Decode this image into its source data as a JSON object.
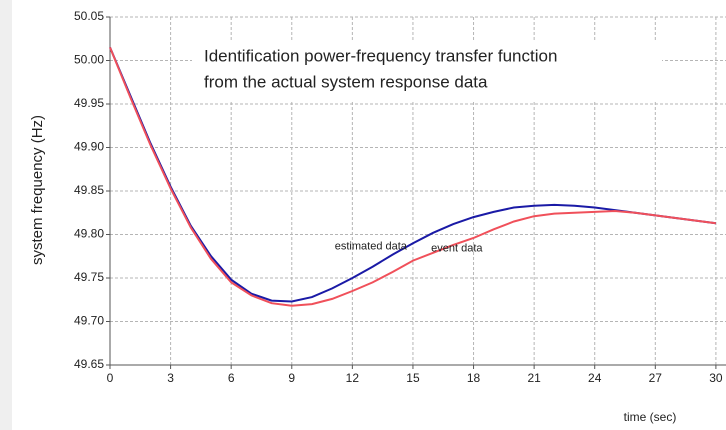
{
  "chart_data": {
    "type": "line",
    "title_lines": [
      "Identification power-frequency transfer function",
      "from the actual system response data"
    ],
    "xlabel": "time (sec)",
    "ylabel": "system frequency (Hz)",
    "x": [
      0,
      1,
      2,
      3,
      4,
      5,
      6,
      7,
      8,
      9,
      10,
      11,
      12,
      13,
      14,
      15,
      16,
      17,
      18,
      19,
      20,
      21,
      22,
      23,
      24,
      25,
      26,
      27,
      28,
      29,
      30
    ],
    "series": [
      {
        "name": "estimated data",
        "color": "#1a1aa6",
        "label_at": 14,
        "values": [
          50.015,
          49.96,
          49.905,
          49.855,
          49.81,
          49.775,
          49.748,
          49.732,
          49.724,
          49.723,
          49.728,
          49.738,
          49.75,
          49.763,
          49.777,
          49.79,
          49.802,
          49.812,
          49.82,
          49.826,
          49.831,
          49.833,
          49.834,
          49.833,
          49.831,
          49.828,
          49.825,
          49.822,
          49.819,
          49.816,
          49.813
        ]
      },
      {
        "name": "event data",
        "color": "#f0505a",
        "label_at": 16,
        "values": [
          50.015,
          49.958,
          49.903,
          49.853,
          49.808,
          49.772,
          49.745,
          49.73,
          49.721,
          49.718,
          49.72,
          49.726,
          49.735,
          49.745,
          49.757,
          49.77,
          49.779,
          49.788,
          49.796,
          49.806,
          49.815,
          49.821,
          49.824,
          49.825,
          49.826,
          49.827,
          49.825,
          49.822,
          49.819,
          49.816,
          49.813
        ]
      }
    ],
    "xlim": [
      0,
      30.5
    ],
    "xticks": [
      0,
      3,
      6,
      9,
      12,
      15,
      18,
      21,
      24,
      27,
      30
    ],
    "ylim": [
      49.65,
      50.05
    ],
    "yticks": [
      49.65,
      {
        "value": 49.7,
        "label": "49.70"
      },
      49.75,
      {
        "value": 49.8,
        "label": "49.80"
      },
      49.85,
      {
        "value": 49.9,
        "label": "49.90"
      },
      49.95,
      {
        "value": 50,
        "label": "50.00"
      },
      50.05
    ],
    "grid": true
  }
}
